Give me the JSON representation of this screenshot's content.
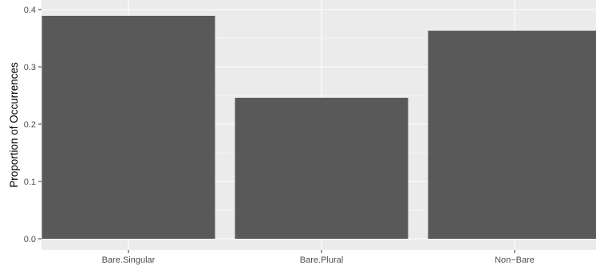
{
  "chart_data": {
    "type": "bar",
    "categories": [
      "Bare.Singular",
      "Bare.Plural",
      "Non−Bare"
    ],
    "values": [
      0.389,
      0.246,
      0.363
    ],
    "title": "",
    "xlabel": "",
    "ylabel": "Proportion of Occurrences",
    "ylim": [
      0,
      0.4
    ],
    "yticks": [
      0.0,
      0.1,
      0.2,
      0.3,
      0.4
    ],
    "ytick_labels": [
      "0.0",
      "0.1",
      "0.2",
      "0.3",
      "0.4"
    ],
    "grid": true,
    "legend": "none",
    "colors": {
      "bar": "#595959",
      "panel": "#ebebeb",
      "grid": "#ffffff"
    }
  }
}
